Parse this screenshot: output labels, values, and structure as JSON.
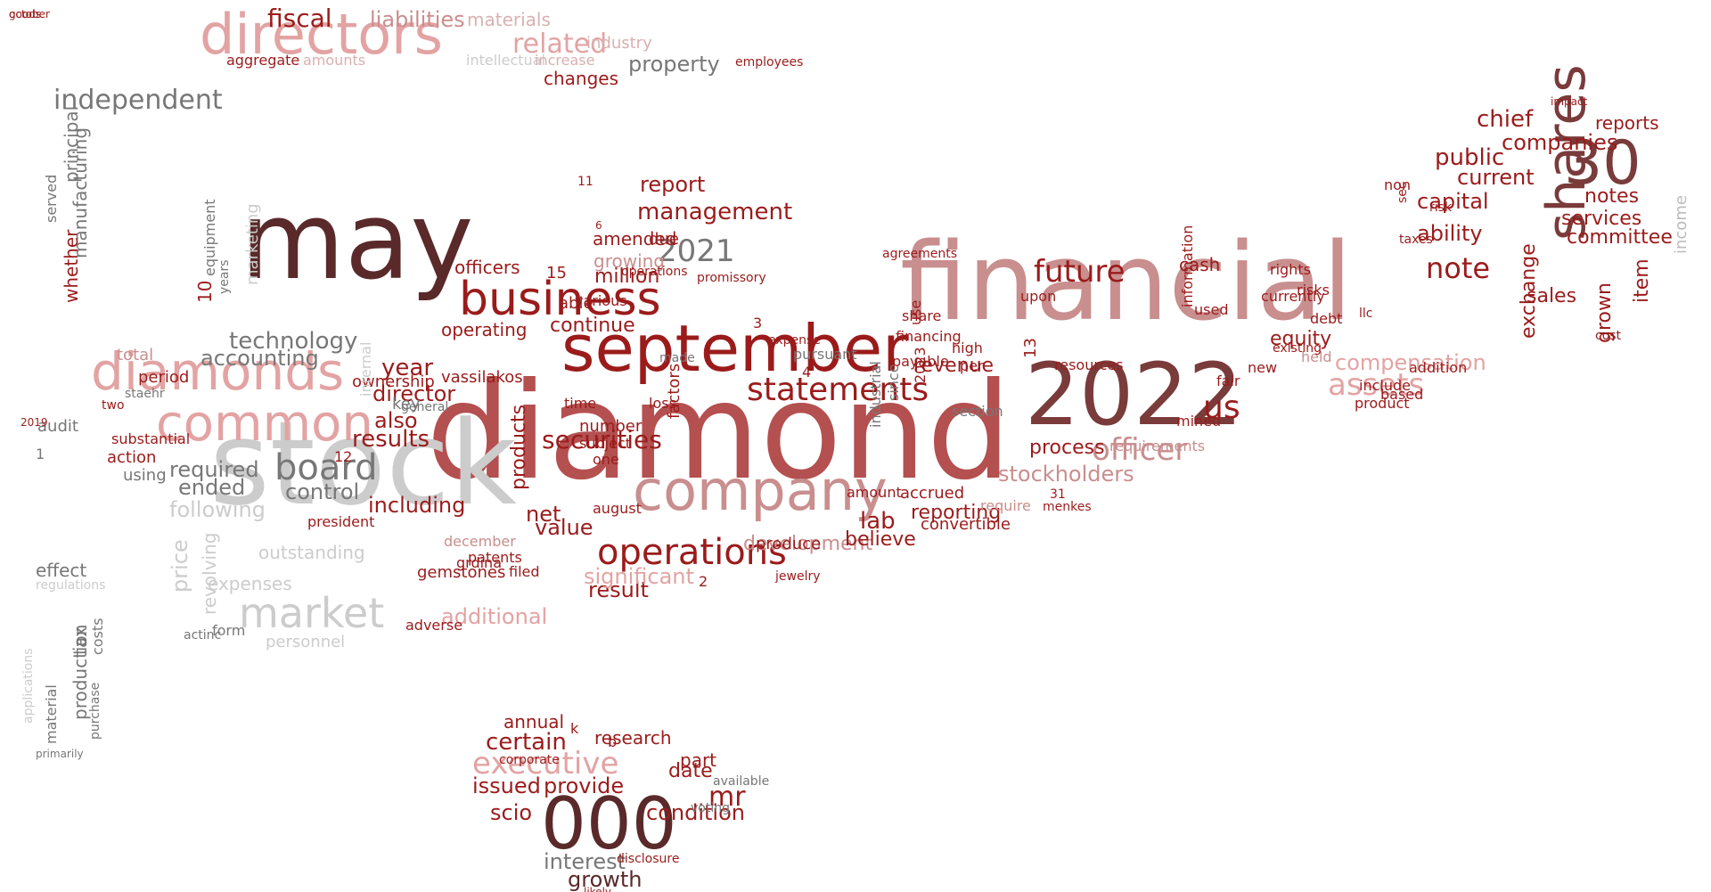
{
  "colors": {
    "c1": "#9b1b1b",
    "c2": "#b45050",
    "c3": "#c98e8e",
    "c4": "#e3a3a3",
    "c5": "#5a2a2a",
    "c6": "#777777",
    "c7": "#bbbbbb",
    "c8": "#d9b0b0",
    "c9": "#7a3b3b",
    "c10": "#cccccc"
  },
  "words": [
    {
      "t": "diamond",
      "c": "c2"
    },
    {
      "t": "stock",
      "c": "c10"
    },
    {
      "t": "may",
      "c": "c5"
    },
    {
      "t": "financial",
      "c": "c3"
    },
    {
      "t": "september",
      "c": "c1"
    },
    {
      "t": "2022",
      "c": "c9"
    },
    {
      "t": "directors",
      "c": "c4"
    },
    {
      "t": "diamonds",
      "c": "c4"
    },
    {
      "t": "company",
      "c": "c3"
    },
    {
      "t": "business",
      "c": "c1"
    },
    {
      "t": "common",
      "c": "c4"
    },
    {
      "t": "000",
      "c": "c5"
    },
    {
      "t": "operations",
      "c": "c1"
    },
    {
      "t": "statements",
      "c": "c1"
    },
    {
      "t": "market",
      "c": "c10"
    },
    {
      "t": "board",
      "c": "c6"
    },
    {
      "t": "shares",
      "c": "c9"
    },
    {
      "t": "30",
      "c": "c9"
    },
    {
      "t": "executive",
      "c": "c4"
    },
    {
      "t": "officer",
      "c": "c3"
    },
    {
      "t": "us",
      "c": "c1"
    },
    {
      "t": "future",
      "c": "c1"
    },
    {
      "t": "note",
      "c": "c1"
    },
    {
      "t": "assets",
      "c": "c4"
    },
    {
      "t": "management",
      "c": "c1"
    },
    {
      "t": "2021",
      "c": "c6"
    },
    {
      "t": "related",
      "c": "c4"
    },
    {
      "t": "fiscal",
      "c": "c1"
    },
    {
      "t": "liabilities",
      "c": "c3"
    },
    {
      "t": "technology",
      "c": "c6"
    },
    {
      "t": "accounting",
      "c": "c6"
    },
    {
      "t": "chief",
      "c": "c1"
    },
    {
      "t": "public",
      "c": "c1"
    },
    {
      "t": "current",
      "c": "c1"
    },
    {
      "t": "capital",
      "c": "c1"
    },
    {
      "t": "ability",
      "c": "c1"
    },
    {
      "t": "companies",
      "c": "c1"
    },
    {
      "t": "services",
      "c": "c1"
    },
    {
      "t": "committee",
      "c": "c1"
    },
    {
      "t": "notes",
      "c": "c1"
    },
    {
      "t": "exchange",
      "c": "c1"
    },
    {
      "t": "grown",
      "c": "c1"
    },
    {
      "t": "item",
      "c": "c1"
    },
    {
      "t": "sales",
      "c": "c1"
    },
    {
      "t": "income",
      "c": "c7"
    },
    {
      "t": "reports",
      "c": "c1"
    },
    {
      "t": "compensation",
      "c": "c4"
    },
    {
      "t": "stockholders",
      "c": "c3"
    },
    {
      "t": "mr",
      "c": "c1"
    },
    {
      "t": "certain",
      "c": "c1"
    },
    {
      "t": "issued",
      "c": "c1"
    },
    {
      "t": "provide",
      "c": "c1"
    },
    {
      "t": "scio",
      "c": "c1"
    },
    {
      "t": "condition",
      "c": "c1"
    },
    {
      "t": "interest",
      "c": "c6"
    },
    {
      "t": "growth",
      "c": "c5"
    },
    {
      "t": "research",
      "c": "c1"
    },
    {
      "t": "annual",
      "c": "c1"
    },
    {
      "t": "date",
      "c": "c1"
    },
    {
      "t": "part",
      "c": "c1"
    },
    {
      "t": "lab",
      "c": "c1"
    },
    {
      "t": "securities",
      "c": "c1"
    },
    {
      "t": "year",
      "c": "c1"
    },
    {
      "t": "director",
      "c": "c1"
    },
    {
      "t": "results",
      "c": "c1"
    },
    {
      "t": "also",
      "c": "c1"
    },
    {
      "t": "including",
      "c": "c1"
    },
    {
      "t": "value",
      "c": "c1"
    },
    {
      "t": "net",
      "c": "c1"
    },
    {
      "t": "result",
      "c": "c1"
    },
    {
      "t": "significant",
      "c": "c4"
    },
    {
      "t": "additional",
      "c": "c4"
    },
    {
      "t": "following",
      "c": "c10"
    },
    {
      "t": "ended",
      "c": "c6"
    },
    {
      "t": "required",
      "c": "c6"
    },
    {
      "t": "price",
      "c": "c10"
    },
    {
      "t": "control",
      "c": "c6"
    },
    {
      "t": "officers",
      "c": "c1"
    },
    {
      "t": "operating",
      "c": "c1"
    },
    {
      "t": "million",
      "c": "c1"
    },
    {
      "t": "continue",
      "c": "c1"
    },
    {
      "t": "products",
      "c": "c1"
    },
    {
      "t": "revenue",
      "c": "c1"
    },
    {
      "t": "process",
      "c": "c1"
    },
    {
      "t": "equity",
      "c": "c1"
    },
    {
      "t": "cash",
      "c": "c1"
    },
    {
      "t": "reporting",
      "c": "c1"
    },
    {
      "t": "development",
      "c": "c3"
    },
    {
      "t": "believe",
      "c": "c1"
    },
    {
      "t": "growing",
      "c": "c3"
    },
    {
      "t": "amended",
      "c": "c1"
    },
    {
      "t": "report",
      "c": "c1"
    },
    {
      "t": "property",
      "c": "c6"
    },
    {
      "t": "materials",
      "c": "c8"
    },
    {
      "t": "aggregate",
      "c": "c1"
    },
    {
      "t": "amounts",
      "c": "c8"
    },
    {
      "t": "intellectual",
      "c": "c10"
    },
    {
      "t": "increase",
      "c": "c8"
    },
    {
      "t": "employees",
      "c": "c1"
    },
    {
      "t": "industry",
      "c": "c8"
    },
    {
      "t": "whether",
      "c": "c1"
    },
    {
      "t": "manufacturing",
      "c": "c6"
    },
    {
      "t": "principal",
      "c": "c6"
    },
    {
      "t": "served",
      "c": "c6"
    },
    {
      "t": "independent",
      "c": "c6"
    },
    {
      "t": "1",
      "c": "c6"
    },
    {
      "t": "audit",
      "c": "c6"
    },
    {
      "t": "effect",
      "c": "c6"
    },
    {
      "t": "tax",
      "c": "c6"
    },
    {
      "t": "production",
      "c": "c6"
    },
    {
      "t": "material",
      "c": "c6"
    },
    {
      "t": "costs",
      "c": "c6"
    },
    {
      "t": "regulations",
      "c": "c10"
    },
    {
      "t": "purchase",
      "c": "c6"
    },
    {
      "t": "applications",
      "c": "c10"
    },
    {
      "t": "primarily",
      "c": "c6"
    },
    {
      "t": "using",
      "c": "c6"
    },
    {
      "t": "total",
      "c": "c3"
    },
    {
      "t": "period",
      "c": "c1"
    },
    {
      "t": "substantial",
      "c": "c1"
    },
    {
      "t": "action",
      "c": "c1"
    },
    {
      "t": "10",
      "c": "c1"
    },
    {
      "t": "years",
      "c": "c6"
    },
    {
      "t": "marketing",
      "c": "c10"
    },
    {
      "t": "equipment",
      "c": "c6"
    },
    {
      "t": "revolving",
      "c": "c10"
    },
    {
      "t": "expenses",
      "c": "c10"
    },
    {
      "t": "outstanding",
      "c": "c10"
    },
    {
      "t": "form",
      "c": "c6"
    },
    {
      "t": "personnel",
      "c": "c10"
    },
    {
      "t": "actinc",
      "c": "c6"
    },
    {
      "t": "key",
      "c": "c6"
    },
    {
      "t": "vassilakos",
      "c": "c1"
    },
    {
      "t": "gemstones",
      "c": "c1"
    },
    {
      "t": "grdina",
      "c": "c1"
    },
    {
      "t": "filed",
      "c": "c1"
    },
    {
      "t": "adverse",
      "c": "c1"
    },
    {
      "t": "december",
      "c": "c3"
    },
    {
      "t": "patents",
      "c": "c1"
    },
    {
      "t": "august",
      "c": "c1"
    },
    {
      "t": "subject",
      "c": "c1"
    },
    {
      "t": "one",
      "c": "c1"
    },
    {
      "t": "number",
      "c": "c1"
    },
    {
      "t": "15",
      "c": "c1"
    },
    {
      "t": "able",
      "c": "c1"
    },
    {
      "t": "time",
      "c": "c1"
    },
    {
      "t": "various",
      "c": "c1"
    },
    {
      "t": "loss",
      "c": "c1"
    },
    {
      "t": "factors",
      "c": "c1"
    },
    {
      "t": "promissory",
      "c": "c1"
    },
    {
      "t": "operations",
      "c": "c1"
    },
    {
      "t": "due",
      "c": "c1"
    },
    {
      "t": "pursuant",
      "c": "c6"
    },
    {
      "t": "4",
      "c": "c1"
    },
    {
      "t": "3",
      "c": "c1"
    },
    {
      "t": "expense",
      "c": "c1"
    },
    {
      "t": "produce",
      "c": "c1"
    },
    {
      "t": "jewelry",
      "c": "c1"
    },
    {
      "t": "industrial",
      "c": "c6"
    },
    {
      "t": "since",
      "c": "c6"
    },
    {
      "t": "amount",
      "c": "c1"
    },
    {
      "t": "agreements",
      "c": "c1"
    },
    {
      "t": "2023",
      "c": "c1"
    },
    {
      "t": "use",
      "c": "c1"
    },
    {
      "t": "financing",
      "c": "c1"
    },
    {
      "t": "share",
      "c": "c1"
    },
    {
      "t": "payable",
      "c": "c1"
    },
    {
      "t": "high",
      "c": "c1"
    },
    {
      "t": "per",
      "c": "c1"
    },
    {
      "t": "convertible",
      "c": "c1"
    },
    {
      "t": "accrued",
      "c": "c1"
    },
    {
      "t": "13",
      "c": "c1"
    },
    {
      "t": "require",
      "c": "c3"
    },
    {
      "t": "upon",
      "c": "c1"
    },
    {
      "t": "resources",
      "c": "c1"
    },
    {
      "t": "requirements",
      "c": "c3"
    },
    {
      "t": "mined",
      "c": "c1"
    },
    {
      "t": "used",
      "c": "c1"
    },
    {
      "t": "information",
      "c": "c1"
    },
    {
      "t": "fair",
      "c": "c1"
    },
    {
      "t": "held",
      "c": "c3"
    },
    {
      "t": "include",
      "c": "c1"
    },
    {
      "t": "llc",
      "c": "c1"
    },
    {
      "t": "new",
      "c": "c1"
    },
    {
      "t": "existing",
      "c": "c1"
    },
    {
      "t": "currently",
      "c": "c1"
    },
    {
      "t": "debt",
      "c": "c1"
    },
    {
      "t": "product",
      "c": "c1"
    },
    {
      "t": "based",
      "c": "c1"
    },
    {
      "t": "addition",
      "c": "c1"
    },
    {
      "t": "risks",
      "c": "c1"
    },
    {
      "t": "rights",
      "c": "c1"
    },
    {
      "t": "non",
      "c": "c1"
    },
    {
      "t": "sec",
      "c": "c1"
    },
    {
      "t": "taxes",
      "c": "c1"
    },
    {
      "t": "risk",
      "c": "c1"
    },
    {
      "t": "impact",
      "c": "c1"
    },
    {
      "t": "cost",
      "c": "c1"
    },
    {
      "t": "ownership",
      "c": "c1"
    },
    {
      "t": "internal",
      "c": "c10"
    },
    {
      "t": "12",
      "c": "c1"
    },
    {
      "t": "president",
      "c": "c1"
    },
    {
      "t": "changes",
      "c": "c1"
    },
    {
      "t": "section",
      "c": "c6"
    },
    {
      "t": "2",
      "c": "c1"
    },
    {
      "t": "31",
      "c": "c1"
    },
    {
      "t": "11",
      "c": "c1"
    },
    {
      "t": "6",
      "c": "c1"
    },
    {
      "t": "made",
      "c": "c6"
    },
    {
      "t": "general",
      "c": "c6"
    },
    {
      "t": "2019",
      "c": "c1"
    },
    {
      "t": "menkes",
      "c": "c1"
    },
    {
      "t": "staehr",
      "c": "c6"
    },
    {
      "t": "two",
      "c": "c1"
    },
    {
      "t": "k",
      "c": "c1"
    },
    {
      "t": "b",
      "c": "c1"
    },
    {
      "t": "corporate",
      "c": "c1"
    },
    {
      "t": "likely",
      "c": "c1"
    },
    {
      "t": "disclosure",
      "c": "c1"
    },
    {
      "t": "available",
      "c": "c6"
    },
    {
      "t": "voting",
      "c": "c6"
    },
    {
      "t": "october",
      "c": "c1"
    },
    {
      "t": "goods",
      "c": "c1"
    }
  ]
}
